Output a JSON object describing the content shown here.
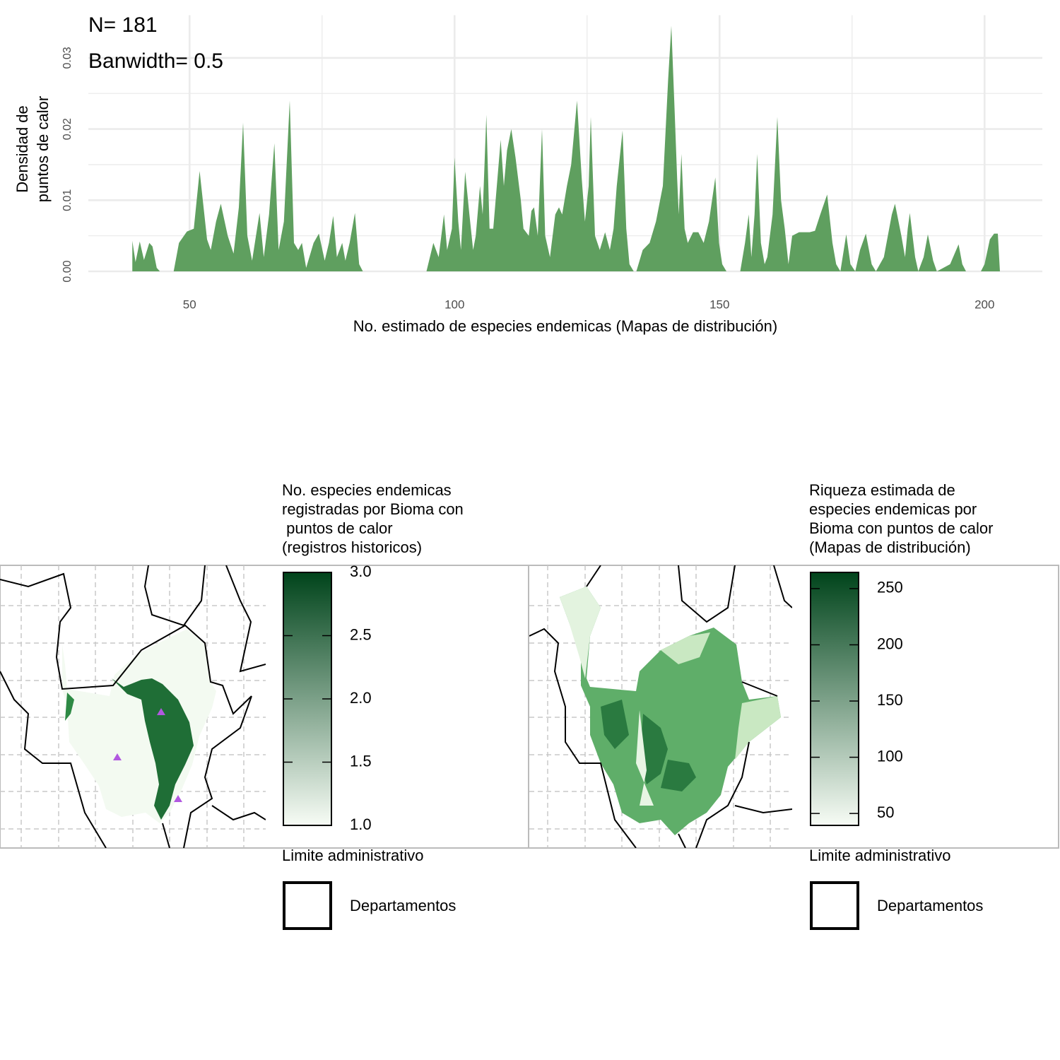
{
  "chart_data": {
    "type": "area",
    "annotations": [
      "N= 181",
      "Banwidth= 0.5"
    ],
    "y_label": [
      "Densidad de",
      "puntos de calor"
    ],
    "x_label": "No. estimado de especies endemicas (Mapas de distribución)",
    "color": "#5f9f5f",
    "xlim": [
      30.9,
      210.9
    ],
    "xticks": [
      50,
      100,
      150,
      200
    ],
    "xminorticks": [
      75,
      125,
      175
    ],
    "ylim": [
      0,
      0.036
    ],
    "yticks": [
      {
        "value": 0,
        "label": "0.00"
      },
      {
        "value": 0.01,
        "label": "0.01"
      },
      {
        "value": 0.02,
        "label": "0.02"
      },
      {
        "value": 0.03,
        "label": "0.03"
      }
    ],
    "yminorticks": [
      0.005,
      0.015,
      0.025
    ],
    "grid": true,
    "x": [
      39.2,
      39.8,
      40.6,
      41.4,
      42.4,
      43,
      43.8,
      44.4,
      47,
      48,
      49.5,
      50.8,
      51.9,
      53.3,
      54,
      55,
      55.9,
      57.2,
      58.3,
      59.3,
      60.1,
      60.9,
      61.8,
      63.2,
      64,
      65,
      66,
      66.8,
      67.8,
      68.9,
      69.7,
      70.5,
      71.2,
      72,
      73.4,
      74.4,
      75.5,
      76.3,
      77.1,
      77.8,
      78.8,
      79.4,
      80.2,
      81.2,
      82,
      82.7,
      94.7,
      96,
      97,
      98,
      98.6,
      99.5,
      100,
      100.7,
      101.2,
      102,
      102.8,
      103.5,
      104,
      104.8,
      105.3,
      106,
      106.6,
      107.3,
      108.7,
      109.3,
      109.9,
      110.7,
      111.5,
      112.5,
      113,
      114,
      114.5,
      115,
      115.7,
      116.5,
      117.1,
      118,
      119,
      119.7,
      120.3,
      121.2,
      122,
      123.1,
      124,
      124.6,
      125.3,
      125.7,
      126.5,
      127.4,
      128.4,
      129.3,
      130,
      130.6,
      131.7,
      132.4,
      133,
      133.8,
      134.3,
      135.5,
      136.8,
      138,
      139.3,
      140.3,
      140.9,
      141.5,
      142,
      142.3,
      142.8,
      143.4,
      144,
      145,
      146,
      147,
      148,
      149.2,
      149.9,
      150.5,
      151.3,
      153.9,
      154.8,
      155.5,
      156,
      156.6,
      157.1,
      157.8,
      158.5,
      159,
      160,
      160.9,
      161.6,
      162.3,
      163,
      163.7,
      165,
      167,
      168,
      169,
      170.3,
      171.3,
      172,
      172.8,
      173.9,
      174.7,
      175.6,
      176.5,
      177.6,
      178.7,
      179.5,
      181,
      182.5,
      183.1,
      184.3,
      185,
      185.5,
      185.9,
      186.9,
      187.5,
      188.5,
      189.3,
      190.3,
      191,
      193.5,
      195.1,
      195.8,
      196.5,
      199.3,
      200,
      201,
      201.8,
      202.5,
      202.9
    ],
    "values": [
      0.0043,
      0.0013,
      0.0042,
      0.0016,
      0.004,
      0.0035,
      0.0005,
      0,
      0,
      0.004,
      0.0056,
      0.006,
      0.0141,
      0.0045,
      0.003,
      0.007,
      0.0095,
      0.005,
      0.0025,
      0.009,
      0.0209,
      0.005,
      0.0015,
      0.0082,
      0.002,
      0.008,
      0.018,
      0.003,
      0.007,
      0.024,
      0.004,
      0.003,
      0.004,
      0.0005,
      0.004,
      0.0053,
      0.0015,
      0.004,
      0.0078,
      0.002,
      0.004,
      0.0015,
      0.004,
      0.0082,
      0.001,
      0,
      0,
      0.004,
      0.002,
      0.008,
      0.003,
      0.006,
      0.016,
      0.007,
      0.003,
      0.014,
      0.008,
      0.003,
      0.005,
      0.012,
      0.008,
      0.022,
      0.006,
      0.006,
      0.0185,
      0.012,
      0.017,
      0.02,
      0.016,
      0.01,
      0.006,
      0.005,
      0.0085,
      0.009,
      0.005,
      0.02,
      0.005,
      0.002,
      0.008,
      0.009,
      0.008,
      0.012,
      0.015,
      0.024,
      0.013,
      0.007,
      0.012,
      0.0217,
      0.005,
      0.003,
      0.0055,
      0.003,
      0.006,
      0.012,
      0.0198,
      0.006,
      0.001,
      0,
      0,
      0.003,
      0.004,
      0.007,
      0.012,
      0.027,
      0.0345,
      0.023,
      0.013,
      0.008,
      0.0165,
      0.006,
      0.004,
      0.0055,
      0.0055,
      0.004,
      0.007,
      0.0132,
      0.004,
      0.001,
      0,
      0,
      0.004,
      0.008,
      0.002,
      0.008,
      0.0165,
      0.004,
      0.001,
      0.002,
      0.008,
      0.0217,
      0.01,
      0.006,
      0.001,
      0.005,
      0.0055,
      0.0055,
      0.0057,
      0.008,
      0.0108,
      0.004,
      0.001,
      0,
      0.0052,
      0.001,
      0,
      0.003,
      0.0053,
      0.001,
      0,
      0.002,
      0.008,
      0.0095,
      0.005,
      0.002,
      0.006,
      0.0082,
      0.002,
      0,
      0.002,
      0.0052,
      0.0015,
      0,
      0.001,
      0.0038,
      0.001,
      0,
      0,
      0.001,
      0.0045,
      0.0053,
      0.0053,
      0
    ]
  },
  "maps": [
    {
      "legend_title": [
        "No. especies endemicas",
        "registradas por Bioma con",
        " puntos de calor",
        "(registros historicos)"
      ],
      "colorbar": {
        "lim": [
          1,
          3
        ],
        "colors": [
          "#f7fcf5",
          "#00441b"
        ],
        "ticks": [
          {
            "value": 3,
            "label": "3.0"
          },
          {
            "value": 2.5,
            "label": "2.5"
          },
          {
            "value": 2,
            "label": "2.0"
          },
          {
            "value": 1.5,
            "label": "1.5"
          },
          {
            "value": 1,
            "label": "1.0"
          }
        ]
      },
      "boundary_title": "Limite administrativo",
      "boundary_label": "Departamentos"
    },
    {
      "legend_title": [
        "Riqueza estimada de",
        "especies endemicas por",
        "Bioma con puntos de calor",
        "(Mapas de distribución)"
      ],
      "colorbar": {
        "lim": [
          39.4,
          264.4
        ],
        "colors": [
          "#f7fcf5",
          "#00441b"
        ],
        "ticks": [
          250,
          200,
          150,
          100,
          50
        ]
      },
      "boundary_title": "Limite administrativo",
      "boundary_label": "Departamentos"
    }
  ]
}
